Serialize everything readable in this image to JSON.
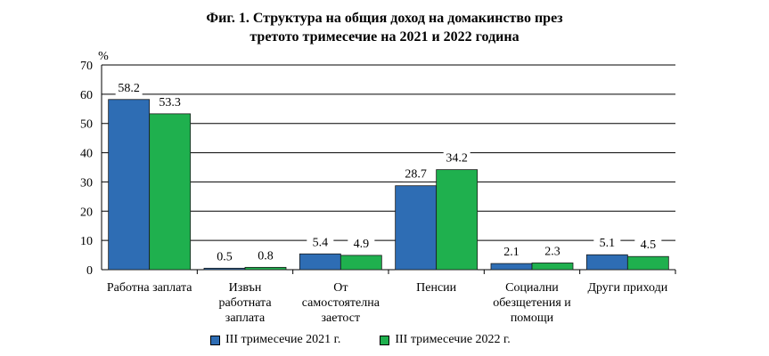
{
  "title": {
    "line1": "Фиг. 1. Структура на общия доход на домакинство през",
    "line2": "третото тримесечие на 2021 и 2022 година"
  },
  "colors": {
    "series_2021": "#2e6db4",
    "series_2022": "#1fb04e",
    "gridline": "#000000",
    "axis": "#000000"
  },
  "legend": [
    {
      "label": "III тримесечие 2021 г.",
      "color": "#2e6db4"
    },
    {
      "label": "III тримесечие 2022 г.",
      "color": "#1fb04e"
    }
  ],
  "chart_data": {
    "type": "bar",
    "title": "Фиг. 1. Структура на общия доход на домакинство през третото тримесечие на 2021 и 2022 година",
    "ylabel": "%",
    "xlabel": "",
    "ylim": [
      0,
      70
    ],
    "yticks": [
      0,
      10,
      20,
      30,
      40,
      50,
      60,
      70
    ],
    "grid": true,
    "legend_position": "bottom",
    "categories": [
      [
        "Работна заплата"
      ],
      [
        "Извън",
        "работната",
        "заплата"
      ],
      [
        "От",
        "самостоятелна",
        "заетост"
      ],
      [
        "Пенсии"
      ],
      [
        "Социални",
        "обезщетения и",
        "помощи"
      ],
      [
        "Други приходи"
      ]
    ],
    "series": [
      {
        "name": "III тримесечие 2021 г.",
        "values": [
          58.2,
          0.5,
          5.4,
          28.7,
          2.1,
          5.1
        ],
        "labels": [
          "58.2",
          "0.5",
          "5.4",
          "28.7",
          "2.1",
          "5.1"
        ]
      },
      {
        "name": "III тримесечие 2022 г.",
        "values": [
          53.3,
          0.8,
          4.9,
          34.2,
          2.3,
          4.5
        ],
        "labels": [
          "53.3",
          "0.8",
          "4.9",
          "34.2",
          "2.3",
          "4.5"
        ]
      }
    ]
  }
}
